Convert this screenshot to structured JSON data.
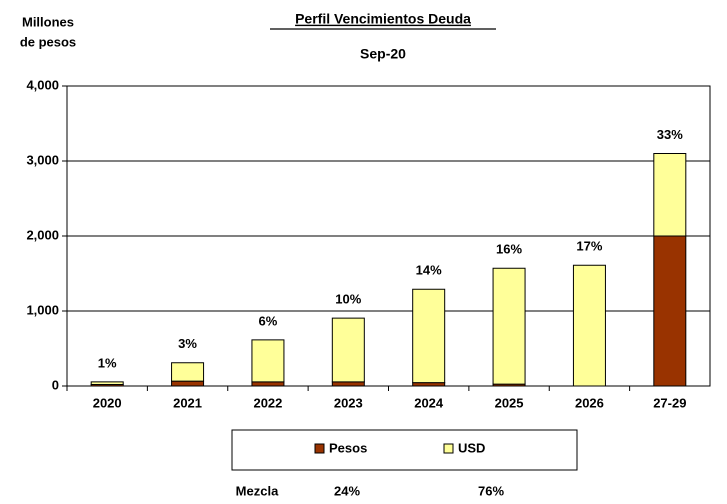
{
  "chart_data": {
    "type": "stacked_bar",
    "title": "Perfil Vencimientos Deuda",
    "subtitle": "Sep-20",
    "y_label": [
      "Millones",
      "de pesos"
    ],
    "categories": [
      "2020",
      "2021",
      "2022",
      "2023",
      "2024",
      "2025",
      "2026",
      "27-29"
    ],
    "series": [
      {
        "name": "Pesos",
        "color": "#993300",
        "values": [
          20,
          65,
          55,
          55,
          45,
          25,
          0,
          2000
        ]
      },
      {
        "name": "USD",
        "color": "#ffff99",
        "values": [
          35,
          245,
          560,
          850,
          1245,
          1545,
          1610,
          1100
        ]
      }
    ],
    "shares": {
      "values": [
        1,
        3,
        6,
        10,
        14,
        16,
        17,
        33
      ],
      "value_labels": [
        "1%",
        "3%",
        "6%",
        "10%",
        "14%",
        "16%",
        "17%",
        "33%"
      ]
    },
    "mix": {
      "label": "Mezcla",
      "values": [
        24,
        76
      ],
      "value_labels": [
        "24%",
        "76%"
      ]
    },
    "ylim": [
      0,
      4000
    ],
    "yticks": [
      0,
      {
        "value": 1000,
        "label": "1,000"
      },
      {
        "value": 2000,
        "label": "2,000"
      },
      {
        "value": 3000,
        "label": "3,000"
      },
      {
        "value": 4000,
        "label": "4,000"
      }
    ],
    "grid": true,
    "legend": "bottom"
  }
}
